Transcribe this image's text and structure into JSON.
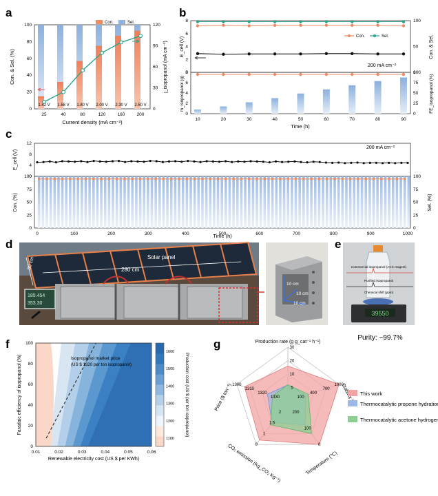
{
  "panels": {
    "a": "a",
    "b": "b",
    "c": "c",
    "d": "d",
    "e": "e",
    "f": "f",
    "g": "g"
  },
  "chart_data": [
    {
      "panel": "a",
      "type": "bar",
      "categories": [
        "25",
        "40",
        "80",
        "120",
        "160",
        "200"
      ],
      "series": [
        {
          "name": "Con.",
          "values": [
            15,
            32,
            57,
            75,
            87,
            93
          ]
        },
        {
          "name": "Sel.",
          "values": [
            100,
            100,
            100,
            100,
            100,
            100
          ]
        }
      ],
      "line": {
        "values": [
          10,
          24,
          55,
          80,
          95,
          104
        ]
      },
      "voltages": [
        "1.42 V",
        "1.58 V",
        "1.80 V",
        "2.00 V",
        "2.30 V",
        "2.50 V"
      ],
      "xlabel": "Current density (mA cm⁻²)",
      "ylabel": "Con. & Sel. (%)",
      "y2label": "j_isopropanol (mA cm⁻²)",
      "ylim": [
        0,
        100
      ],
      "y2lim": [
        0,
        120
      ],
      "yticks": [
        "0",
        "20",
        "40",
        "60",
        "80",
        "100"
      ],
      "y2ticks": [
        "0",
        "30",
        "60",
        "90",
        "120"
      ],
      "legend": "top-right"
    },
    {
      "panel": "b",
      "type": "line",
      "x": [
        10,
        20,
        30,
        40,
        50,
        60,
        70,
        80,
        90
      ],
      "xticks": [
        "10",
        "20",
        "30",
        "40",
        "50",
        "60",
        "70",
        "80",
        "90"
      ],
      "xlabel": "Time (h)",
      "top": {
        "ecell": [
          2.9,
          2.8,
          2.85,
          2.85,
          2.85,
          2.9,
          2.9,
          2.85,
          2.85
        ],
        "con": [
          90,
          91,
          90,
          91,
          91,
          91,
          91,
          91,
          90
        ],
        "sel": [
          98,
          98,
          98,
          98,
          98,
          98,
          98,
          98,
          98
        ],
        "ylabel": "E_cell (V)",
        "y2label": "Con. & Sel.",
        "ylim": [
          0,
          8
        ],
        "y2lim": [
          0,
          100
        ],
        "yticks": [
          "0",
          "2",
          "4",
          "6",
          "8"
        ],
        "y2ticks": [
          "0",
          "50",
          "100"
        ],
        "legend": [
          "Con.",
          "Sel."
        ],
        "annotation": "200 mA cm⁻²"
      },
      "bottom": {
        "mass": [
          0.8,
          1.4,
          2.2,
          3.0,
          3.9,
          4.7,
          5.5,
          6.3,
          7.0
        ],
        "fe": [
          95,
          95,
          95,
          95,
          95,
          95,
          95,
          95,
          95
        ],
        "ylabel": "m_isopropanol (g)",
        "y2label": "FE_isopropanol (%)",
        "ylim": [
          0,
          8
        ],
        "y2lim": [
          0,
          100
        ],
        "yticks": [
          "0",
          "2",
          "4",
          "6",
          "8"
        ],
        "y2ticks": [
          "0",
          "25",
          "50",
          "75",
          "100"
        ]
      }
    },
    {
      "panel": "c",
      "type": "line",
      "xlabel": "Time (h)",
      "xticks": [
        "0",
        "100",
        "200",
        "300",
        "400",
        "500",
        "600",
        "700",
        "800",
        "900",
        "1000"
      ],
      "xlim": [
        0,
        1000
      ],
      "ecell": [
        5.1,
        5.2,
        5.4,
        5.1,
        5.5,
        5.4,
        5.3,
        5.5,
        5.2,
        5.6,
        5.4,
        5.3,
        5.5,
        5.6,
        5.2,
        5.5,
        5.4,
        5.3,
        5.6,
        5.5,
        5.2,
        5.4,
        5.5,
        5.3,
        5.6,
        5.4,
        5.2,
        5.5,
        5.4,
        5.3,
        5.5,
        5.2,
        5.4,
        5.3,
        5.5,
        5.4,
        5.3,
        5.1,
        5.4,
        5.2,
        5.3,
        5.4,
        5.2,
        5.1,
        5.3,
        5.2,
        5.0,
        4.9,
        5.0,
        4.8,
        4.9,
        5.0,
        4.8,
        4.9,
        4.9,
        4.8,
        4.9,
        4.8,
        4.9,
        4.9
      ],
      "con": 95,
      "sel": 100,
      "ylabel": "E_cell (V)",
      "ylim": [
        0,
        12
      ],
      "yticks": [
        "0",
        "4",
        "8",
        "12"
      ],
      "ylabel2": "Con. (%)",
      "y2label": "Sel. (%)",
      "ylim2": [
        0,
        100
      ],
      "yticks2": [
        "0",
        "25",
        "50",
        "75",
        "100"
      ],
      "y2ticks": [
        "0",
        "25",
        "50",
        "75",
        "100"
      ],
      "annotation": "200 mA cm⁻²"
    },
    {
      "panel": "f",
      "type": "heatmap",
      "xlabel": "Renewable electricity cost (US $ per KWh)",
      "ylabel": "Faradaic efficiency of isopropanol (%)",
      "colorbar_label": "Production cost (US $ per ton isopropanol)",
      "xlim": [
        0.01,
        0.06
      ],
      "ylim": [
        0,
        100
      ],
      "xticks": [
        "0.01",
        "0.02",
        "0.03",
        "0.04",
        "0.05",
        "0.06"
      ],
      "yticks": [
        "0",
        "20",
        "40",
        "60",
        "80",
        "100"
      ],
      "colorbar_ticks": [
        "1100",
        "1200",
        "1300",
        "1400",
        "1500",
        "1600"
      ],
      "annotation": "Isopropanol market price",
      "annotation2": "(US $ 1320 per ton isopropanol)"
    },
    {
      "panel": "g",
      "type": "radar",
      "axes": [
        "Production rate (g g_cat⁻¹ h⁻¹)",
        "Stability (h)",
        "Temperature (℃)",
        "CO₂ emission (Kg_CO₂ Kg⁻¹)",
        "Price ($ ton⁻¹)"
      ],
      "series": [
        {
          "name": "This work",
          "values": [
            0.65,
            1.0,
            1.0,
            0.9,
            0.85
          ]
        },
        {
          "name": "Thermocatalytic propene hydration",
          "values": [
            0.3,
            0.35,
            0.55,
            0.5,
            0.4
          ]
        },
        {
          "name": "Thermocatalytic acetone hydrogenation",
          "values": [
            0.3,
            0.4,
            0.75,
            0.55,
            0.3
          ]
        }
      ],
      "ring_labels": {
        "production": [
          "30",
          "20",
          "10",
          "5"
        ],
        "stability": [
          "1000",
          "700",
          "400",
          "100"
        ],
        "temperature": [
          "0",
          "100",
          "200"
        ],
        "co2": [
          "0",
          "1",
          "1.5",
          "2"
        ],
        "price": [
          "1300",
          "1310",
          "1320",
          "1330"
        ]
      }
    }
  ],
  "photo_d": {
    "solar_label": "Solar panel",
    "dim_width": "280 cm",
    "dim_height": "50 cm",
    "display_lines": [
      "185.454",
      "353.30"
    ],
    "cube_dims": [
      "10 cm",
      "10 cm",
      "10 cm"
    ]
  },
  "photo_e": {
    "line1": "Commercial isopropanol (ACS reagent)",
    "line2": "Purified isopropanol",
    "line3": "Chemical shift (ppm)",
    "scale_reading": "39550",
    "purity": "Purity: ~99.7%"
  },
  "colors": {
    "orange": "#ee8a64",
    "blue": "#8fb2dc",
    "teal": "#2aa38c",
    "radar_this": "#f2a3a3",
    "radar_propene": "#9db8e6",
    "radar_acetone": "#8ccf93"
  }
}
